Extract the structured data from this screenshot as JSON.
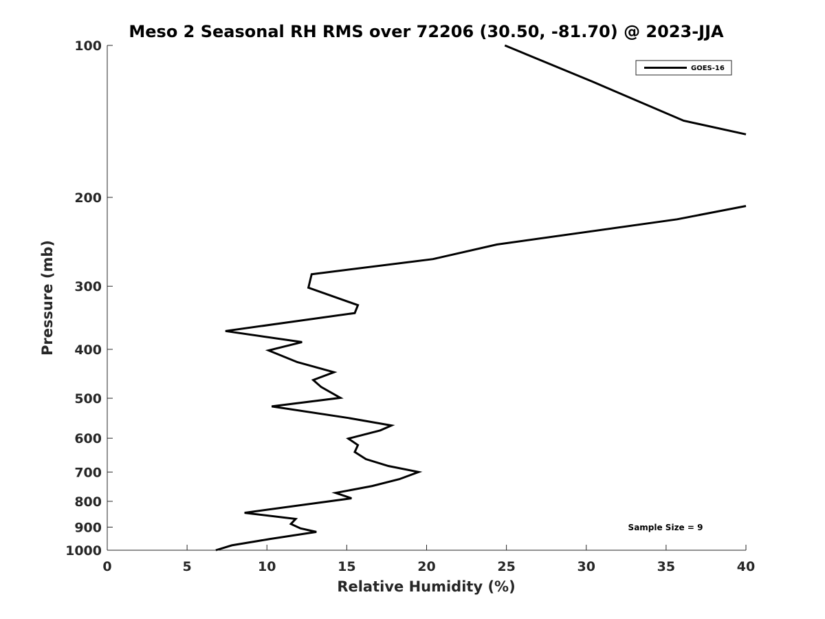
{
  "chart_data": {
    "type": "line",
    "title": "Meso 2 Seasonal RH RMS over 72206 (30.50, -81.70) @ 2023-JJA",
    "xlabel": "Relative Humidity (%)",
    "ylabel": "Pressure (mb)",
    "xlim": [
      0,
      40
    ],
    "ylim": [
      1000,
      100
    ],
    "yscale": "log",
    "y_reversed": true,
    "xticks": [
      "0",
      "5",
      "10",
      "15",
      "20",
      "25",
      "30",
      "35",
      "40"
    ],
    "yticks": [
      "100",
      "200",
      "300",
      "400",
      "500",
      "600",
      "700",
      "800",
      "900",
      "1000"
    ],
    "grid": false,
    "legend_position": "top-right",
    "annotation": "Sample Size = 9",
    "colors": {
      "series": "#000000",
      "axis": "#262626"
    },
    "series": [
      {
        "name": "GOES-16",
        "segments": [
          [
            {
              "x": 24.9,
              "y": 100
            },
            {
              "x": 30.4,
              "y": 118
            },
            {
              "x": 36.1,
              "y": 141
            },
            {
              "x": 40.0,
              "y": 150
            }
          ],
          [
            {
              "x": 40.0,
              "y": 208
            },
            {
              "x": 35.7,
              "y": 221
            },
            {
              "x": 24.4,
              "y": 248
            },
            {
              "x": 20.4,
              "y": 265
            },
            {
              "x": 12.8,
              "y": 284
            },
            {
              "x": 12.6,
              "y": 302
            },
            {
              "x": 15.7,
              "y": 327
            },
            {
              "x": 15.5,
              "y": 339
            },
            {
              "x": 7.4,
              "y": 368
            },
            {
              "x": 12.2,
              "y": 387
            },
            {
              "x": 10.1,
              "y": 402
            },
            {
              "x": 11.9,
              "y": 424
            },
            {
              "x": 14.2,
              "y": 444
            },
            {
              "x": 12.9,
              "y": 460
            },
            {
              "x": 13.4,
              "y": 475
            },
            {
              "x": 14.6,
              "y": 499
            },
            {
              "x": 10.3,
              "y": 519
            },
            {
              "x": 15.1,
              "y": 547
            },
            {
              "x": 17.8,
              "y": 566
            },
            {
              "x": 17.1,
              "y": 579
            },
            {
              "x": 15.1,
              "y": 601
            },
            {
              "x": 15.7,
              "y": 619
            },
            {
              "x": 15.5,
              "y": 639
            },
            {
              "x": 16.2,
              "y": 660
            },
            {
              "x": 17.6,
              "y": 681
            },
            {
              "x": 19.5,
              "y": 700
            },
            {
              "x": 18.3,
              "y": 723
            },
            {
              "x": 16.6,
              "y": 746
            },
            {
              "x": 14.3,
              "y": 770
            },
            {
              "x": 15.3,
              "y": 789
            },
            {
              "x": 8.6,
              "y": 843
            },
            {
              "x": 11.8,
              "y": 867
            },
            {
              "x": 11.5,
              "y": 887
            },
            {
              "x": 12.1,
              "y": 905
            },
            {
              "x": 13.1,
              "y": 920
            },
            {
              "x": 10.2,
              "y": 950
            },
            {
              "x": 7.8,
              "y": 978
            },
            {
              "x": 6.8,
              "y": 1000
            }
          ]
        ]
      }
    ]
  }
}
